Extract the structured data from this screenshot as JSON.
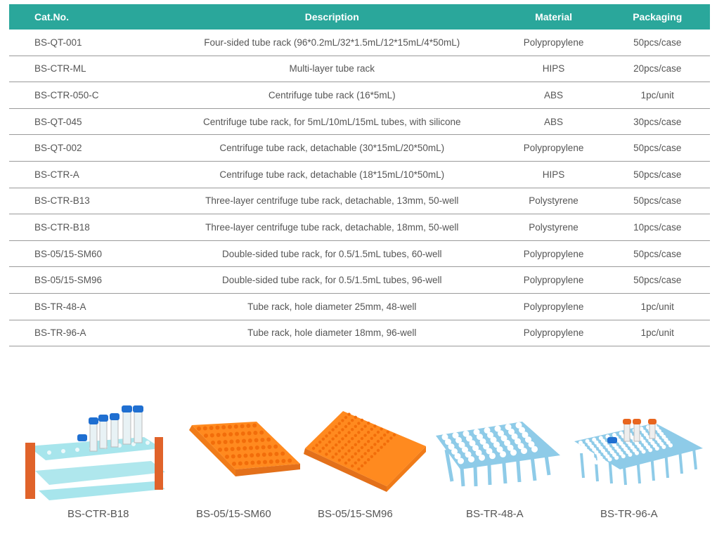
{
  "table": {
    "headers": [
      "Cat.No.",
      "Description",
      "Material",
      "Packaging"
    ],
    "rows": [
      [
        "BS-QT-001",
        "Four-sided tube rack (96*0.2mL/32*1.5mL/12*15mL/4*50mL)",
        "Polypropylene",
        "50pcs/case"
      ],
      [
        "BS-CTR-ML",
        "Multi-layer tube rack",
        "HIPS",
        "20pcs/case"
      ],
      [
        "BS-CTR-050-C",
        "Centrifuge tube rack (16*5mL)",
        "ABS",
        "1pc/unit"
      ],
      [
        "BS-QT-045",
        "Centrifuge tube rack, for 5mL/10mL/15mL tubes, with silicone",
        "ABS",
        "30pcs/case"
      ],
      [
        "BS-QT-002",
        "Centrifuge tube rack, detachable (30*15mL/20*50mL)",
        "Polypropylene",
        "50pcs/case"
      ],
      [
        "BS-CTR-A",
        "Centrifuge tube rack, detachable (18*15mL/10*50mL)",
        "HIPS",
        "50pcs/case"
      ],
      [
        "BS-CTR-B13",
        "Three-layer centrifuge tube rack, detachable, 13mm, 50-well",
        "Polystyrene",
        "50pcs/case"
      ],
      [
        "BS-CTR-B18",
        "Three-layer centrifuge tube rack, detachable, 18mm, 50-well",
        "Polystyrene",
        "10pcs/case"
      ],
      [
        "BS-05/15-SM60",
        "Double-sided tube rack, for 0.5/1.5mL tubes, 60-well",
        "Polypropylene",
        "50pcs/case"
      ],
      [
        "BS-05/15-SM96",
        "Double-sided tube rack, for 0.5/1.5mL tubes, 96-well",
        "Polypropylene",
        "50pcs/case"
      ],
      [
        "BS-TR-48-A",
        "Tube rack, hole diameter 25mm, 48-well",
        "Polypropylene",
        "1pc/unit"
      ],
      [
        "BS-TR-96-A",
        "Tube rack, hole diameter 18mm, 96-well",
        "Polypropylene",
        "1pc/unit"
      ]
    ]
  },
  "products": [
    {
      "caption": "BS-CTR-B18",
      "image": "acrylic-tube-rack-with-centrifuge-tubes"
    },
    {
      "caption": "BS-05/15-SM60",
      "image": "orange-60-well-rack"
    },
    {
      "caption": "BS-05/15-SM96",
      "image": "orange-96-well-rack"
    },
    {
      "caption": "BS-TR-48-A",
      "image": "blue-48-well-rack"
    },
    {
      "caption": "BS-TR-96-A",
      "image": "blue-96-well-rack-with-tubes"
    }
  ],
  "colors": {
    "header_bg": "#2aa79b",
    "rack_cyan": "#5fd0dc",
    "rack_orange": "#ff8a1f",
    "rack_blue": "#8ecbe8",
    "cap_blue": "#1f6fd1",
    "cap_orange": "#e8651e"
  }
}
